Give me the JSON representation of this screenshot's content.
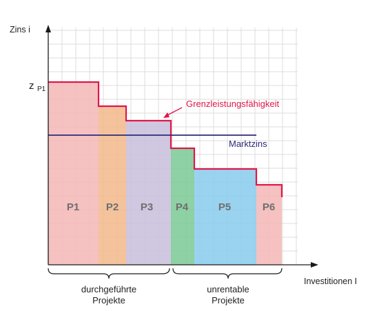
{
  "axes": {
    "y_title": "Zins i",
    "x_title": "Investitionen I",
    "y_marker_main": "z",
    "y_marker_sub": "P1"
  },
  "curve_label": "Grenzleistungsfähigkeit",
  "market_rate_label": "Marktzins",
  "groups": {
    "executed": [
      "durchgeführte",
      "Projekte"
    ],
    "unprofitable": [
      "unrentable",
      "Projekte"
    ]
  },
  "projects": [
    {
      "label": "P1",
      "color": "#f4b8b8"
    },
    {
      "label": "P2",
      "color": "#f2bb8e"
    },
    {
      "label": "P3",
      "color": "#c9bfdc"
    },
    {
      "label": "P4",
      "color": "#7ecb98"
    },
    {
      "label": "P5",
      "color": "#8ccdee"
    },
    {
      "label": "P6",
      "color": "#f4b8b8"
    }
  ],
  "colors": {
    "curve": "#e0174a",
    "market_rate": "#2b2a7a",
    "grid": "#dcdcdc",
    "axis": "#1a1a1a"
  }
}
